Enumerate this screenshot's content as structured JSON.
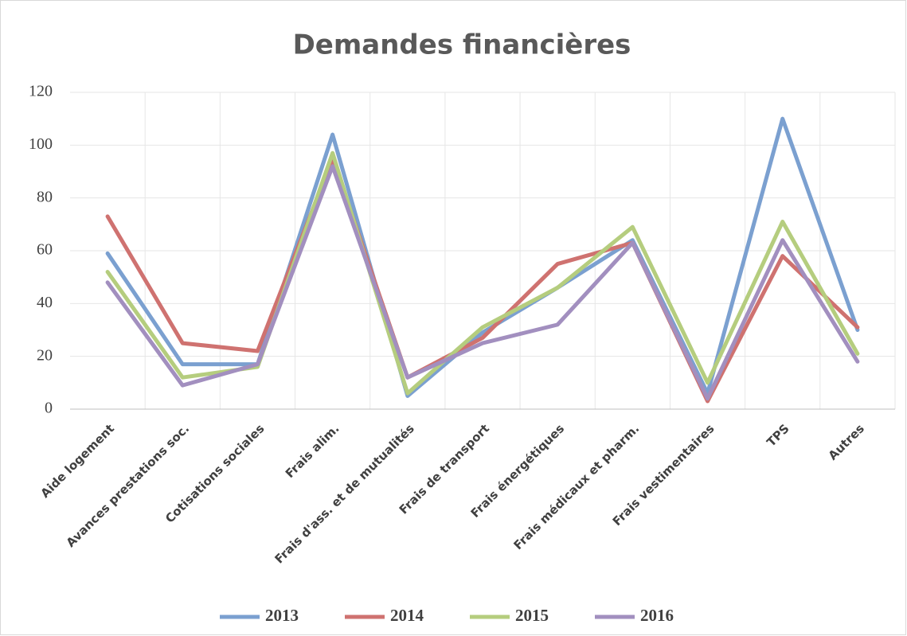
{
  "chart_data": {
    "type": "line",
    "title": "Demandes financières",
    "categories": [
      "Aide logement",
      "Avances prestations soc.",
      "Cotisations sociales",
      "Frais alim.",
      "Frais d'ass. et de mutualités",
      "Frais de transport",
      "Frais énergétiques",
      "Frais médicaux et pharm.",
      "Frais vestimentaires",
      "TPS",
      "Autres"
    ],
    "series": [
      {
        "name": "2013",
        "color": "#7ba0d0",
        "values": [
          59,
          17,
          17,
          104,
          5,
          29,
          46,
          64,
          6,
          110,
          30
        ]
      },
      {
        "name": "2014",
        "color": "#cf7270",
        "values": [
          73,
          25,
          22,
          95,
          12,
          27,
          55,
          63,
          3,
          58,
          31
        ]
      },
      {
        "name": "2015",
        "color": "#b5cd7e",
        "values": [
          52,
          12,
          16,
          97,
          6,
          31,
          46,
          69,
          10,
          71,
          21
        ]
      },
      {
        "name": "2016",
        "color": "#a28fbf",
        "values": [
          48,
          9,
          17,
          92,
          12,
          25,
          32,
          63,
          4,
          64,
          18
        ]
      }
    ],
    "ylim": [
      0,
      120
    ],
    "yticks": [
      0,
      20,
      40,
      60,
      80,
      100,
      120
    ],
    "grid": true,
    "legend": "bottom"
  }
}
